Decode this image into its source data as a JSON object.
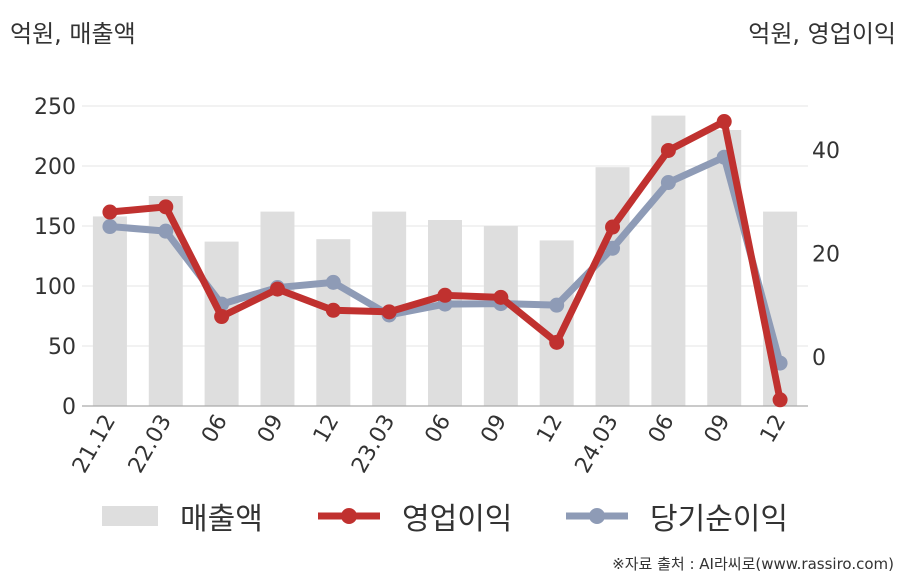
{
  "units": {
    "left": "억원, 매출액",
    "right": "억원, 영업이익"
  },
  "source": "※자료 출처 : AI라씨로(www.rassiro.com)",
  "legend": {
    "revenue": "매출액",
    "operating": "영업이익",
    "net": "당기순이익"
  },
  "colors": {
    "revenue": "#dedede",
    "operating": "#c0312f",
    "net": "#8e9bb6",
    "grid": "#e6e6e6",
    "axis": "#aaaaaa",
    "text": "#333333"
  },
  "chart_data": {
    "type": "bar+line",
    "categories": [
      "21.12",
      "22.03",
      "06",
      "09",
      "12",
      "23.03",
      "06",
      "09",
      "12",
      "24.03",
      "06",
      "09",
      "12"
    ],
    "series": [
      {
        "name": "매출액",
        "type": "bar",
        "axis": "left",
        "values": [
          158,
          175,
          137,
          162,
          139,
          162,
          155,
          150,
          138,
          199,
          242,
          230,
          162
        ]
      },
      {
        "name": "영업이익",
        "type": "line",
        "axis": "right",
        "values": [
          28.0,
          29.0,
          7.8,
          13.1,
          9.0,
          8.7,
          11.9,
          11.5,
          2.8,
          25.1,
          39.9,
          45.5,
          -8.3
        ]
      },
      {
        "name": "당기순이익",
        "type": "line",
        "axis": "right",
        "values": [
          25.2,
          24.3,
          10.2,
          13.4,
          14.4,
          8.1,
          10.2,
          10.3,
          10.0,
          21.0,
          33.7,
          38.6,
          -1.2
        ]
      }
    ],
    "y_left": {
      "min": 0,
      "max": 250,
      "ticks": [
        0,
        50,
        100,
        150,
        200,
        250
      ]
    },
    "y_right": {
      "min": -9.5,
      "max": 48.5,
      "ticks": [
        0,
        20,
        40
      ]
    },
    "grid": true,
    "legend_position": "bottom"
  }
}
